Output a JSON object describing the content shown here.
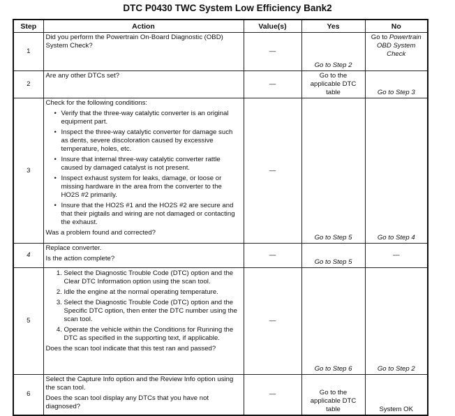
{
  "title": "DTC P0430 TWC System Low Efficiency Bank2",
  "headers": [
    "Step",
    "Action",
    "Value(s)",
    "Yes",
    "No"
  ],
  "rows": [
    {
      "step": "1",
      "action": [
        "Did you perform the Powertrain On-Board Diagnostic (OBD) System Check?"
      ],
      "value": "—",
      "yes": "Go to Step 2",
      "no_prefix": "Go to",
      "no": "Powertrain OBD System Check"
    },
    {
      "step": "2",
      "action": [
        "Are any other DTCs set?"
      ],
      "value": "—",
      "yes": "Go to the applicable DTC table",
      "no": "Go to Step 3"
    },
    {
      "step": "3",
      "intro": "Check for the following conditions:",
      "bullets": [
        "Verify that the three-way catalytic converter is an original equipment part.",
        "Inspect the three-way catalytic converter for damage such as dents, severe discoloration caused by excessive temperature, holes, etc.",
        "Insure that internal three-way catalytic converter rattle caused by damaged catalyst is not present.",
        "Inspect exhaust system for leaks, damage, or loose or missing hardware in the area from the converter to the HO2S #2 primarily.",
        "Insure that the HO2S #1 and the HO2S #2 are secure and that their pigtails and wiring are not damaged or contacting the exhaust."
      ],
      "question": "Was a problem found and corrected?",
      "value": "—",
      "yes": "Go to Step 5",
      "no": "Go to Step 4"
    },
    {
      "step": "4",
      "action": [
        "Replace converter.",
        "Is the action complete?"
      ],
      "value": "—",
      "yes": "Go to Step 5",
      "no": "—"
    },
    {
      "step": "5",
      "steps": [
        "Select the Diagnostic Trouble Code (DTC) option and the Clear DTC Information option using the scan tool.",
        "Idle the engine at the normal operating temperature.",
        "Select the Diagnostic Trouble Code (DTC) option and the Specific DTC option, then enter the DTC number using the scan tool.",
        "Operate the vehicle within the Conditions for Running the DTC as specified in the supporting text, if applicable."
      ],
      "question": "Does the scan tool indicate that this test ran and passed?",
      "value": "—",
      "yes": "Go to Step 6",
      "no": "Go to Step 2"
    },
    {
      "step": "6",
      "action": [
        "Select the Capture Info option and the Review Info option using the scan tool.",
        "Does the scan tool display any DTCs that you have not diagnosed?"
      ],
      "value": "—",
      "yes": "Go to the applicable DTC table",
      "no": "System OK"
    }
  ]
}
